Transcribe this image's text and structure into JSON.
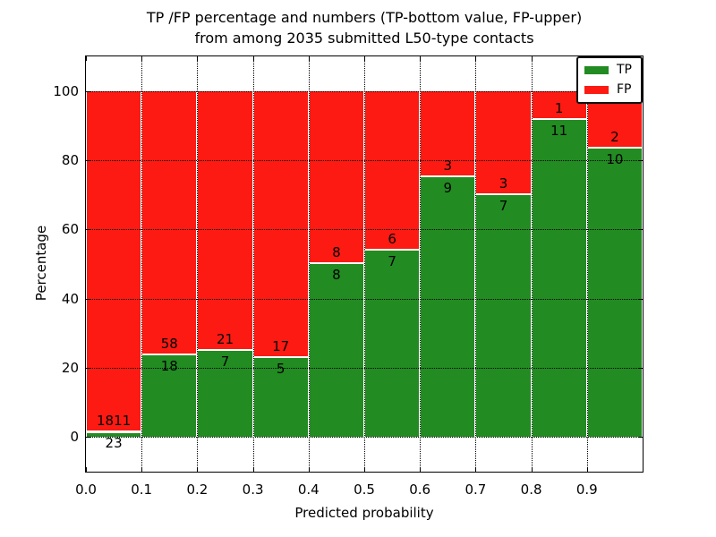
{
  "figure": {
    "title_line1": "TP /FP percentage and numbers (TP-bottom value, FP-upper)",
    "title_line2": "from among 2035 submitted L50-type contacts"
  },
  "axes": {
    "xlabel": "Predicted probability",
    "ylabel": "Percentage",
    "x_tick_labels": [
      "0.0",
      "0.1",
      "0.2",
      "0.3",
      "0.4",
      "0.5",
      "0.6",
      "0.7",
      "0.8",
      "0.9"
    ],
    "x_tick_values": [
      0,
      0.1,
      0.2,
      0.3,
      0.4,
      0.5,
      0.6,
      0.7,
      0.8,
      0.9
    ],
    "y_tick_labels": [
      "0",
      "20",
      "40",
      "60",
      "80",
      "100"
    ],
    "y_tick_values": [
      0,
      20,
      40,
      60,
      80,
      100
    ],
    "xlim": [
      0,
      1
    ],
    "ylim": [
      -10,
      110
    ],
    "grid": "dotted both axes"
  },
  "legend": {
    "position": "upper right",
    "items": [
      {
        "label": "TP",
        "color": "#228b22"
      },
      {
        "label": "FP",
        "color": "#fc1a13"
      }
    ]
  },
  "chart_data": {
    "type": "bar",
    "stacked": true,
    "normalized": "each bin scaled to 100 percent",
    "bin_width": 0.1,
    "bin_starts": [
      0.0,
      0.1,
      0.2,
      0.3,
      0.4,
      0.5,
      0.6,
      0.7,
      0.8,
      0.9
    ],
    "series": [
      {
        "name": "TP",
        "stack_position": "bottom",
        "color": "#228b22",
        "counts": [
          23,
          18,
          7,
          5,
          8,
          7,
          9,
          7,
          11,
          10
        ]
      },
      {
        "name": "FP",
        "stack_position": "top",
        "color": "#fc1a13",
        "counts": [
          1811,
          58,
          21,
          17,
          8,
          6,
          3,
          3,
          1,
          2
        ]
      }
    ],
    "tp_percent_of_bin": [
      1.25,
      23.68,
      25.0,
      22.73,
      50.0,
      53.85,
      75.0,
      70.0,
      91.67,
      83.33
    ],
    "total_contacts": 2035,
    "title": "TP /FP percentage and numbers (TP-bottom value, FP-upper) from among 2035 submitted L50-type contacts",
    "xlabel": "Predicted probability",
    "ylabel": "Percentage"
  }
}
